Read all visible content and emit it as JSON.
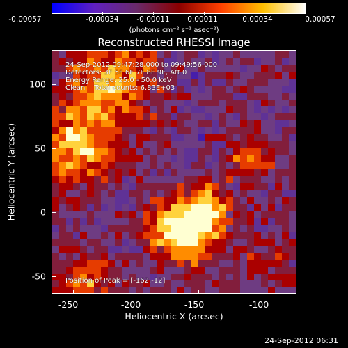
{
  "colorbar": {
    "ticks": [
      "-0.00057",
      "-0.00034",
      "-0.00011",
      "0.00011",
      "0.00034",
      "0.00057"
    ],
    "units": "(photons cm⁻² s⁻¹ asec⁻²)",
    "colors": [
      "#0000ff",
      "#6020c0",
      "#6a2a6a",
      "#8a0000",
      "#ff4000",
      "#ffc000",
      "#ffffff"
    ]
  },
  "title": "Reconstructed RHESSI Image",
  "annotations": {
    "line1": "24-Sep-2012 09:47:28.000 to 09:49:56.000",
    "line2": "Detectors: 3F 5F 6F 7F 8F 9F, Att 0",
    "line3": "Energy Range: 25.0 - 50.0 keV",
    "line4": "Clean    Total counts: 6.83E+03",
    "peak": "Position of Peak = [-162,-12]"
  },
  "axes": {
    "xlabel": "Heliocentric X (arcsec)",
    "ylabel": "Heliocentric Y (arcsec)",
    "xticks": [
      "-250",
      "-200",
      "-150",
      "-100"
    ],
    "yticks": [
      "100",
      "50",
      "0",
      "-50"
    ]
  },
  "footer_date": "24-Sep-2012 06:31"
}
